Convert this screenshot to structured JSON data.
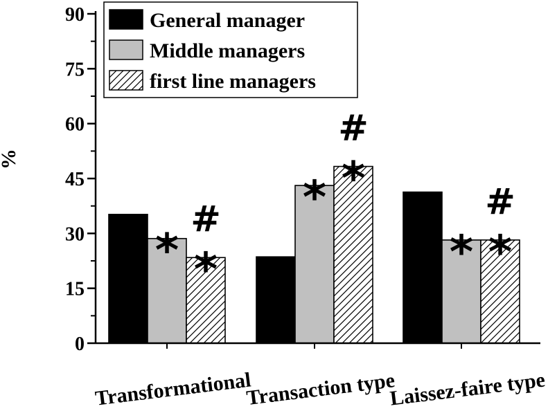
{
  "chart_data": {
    "type": "bar",
    "ylabel": "%",
    "xlabel": "",
    "title": "",
    "ylim": [
      0,
      90
    ],
    "yticks": [
      "0",
      "15",
      "30",
      "45",
      "60",
      "75",
      "90"
    ],
    "categories": [
      "Transformational",
      "Transaction type",
      "Laissez-faire type"
    ],
    "series": [
      {
        "name": "General manager",
        "values": [
          35.2,
          23.6,
          41.3
        ],
        "color": "#000000",
        "fill": "solid"
      },
      {
        "name": "Middle managers",
        "values": [
          28.6,
          43.1,
          28.2
        ],
        "color": "#c0c0c0",
        "fill": "solid"
      },
      {
        "name": "first line managers",
        "values": [
          23.4,
          48.3,
          28.2
        ],
        "color": "#ffffff",
        "fill": "hatch"
      }
    ],
    "annotations": [
      {
        "category": 0,
        "series": 1,
        "marks": [
          "*"
        ]
      },
      {
        "category": 0,
        "series": 2,
        "marks": [
          "*",
          "#"
        ]
      },
      {
        "category": 1,
        "series": 1,
        "marks": [
          "*"
        ]
      },
      {
        "category": 1,
        "series": 2,
        "marks": [
          "*",
          "#"
        ]
      },
      {
        "category": 2,
        "series": 1,
        "marks": [
          "*"
        ]
      },
      {
        "category": 2,
        "series": 2,
        "marks": [
          "*",
          "#"
        ]
      }
    ],
    "legend": "top-left",
    "grid": false
  }
}
